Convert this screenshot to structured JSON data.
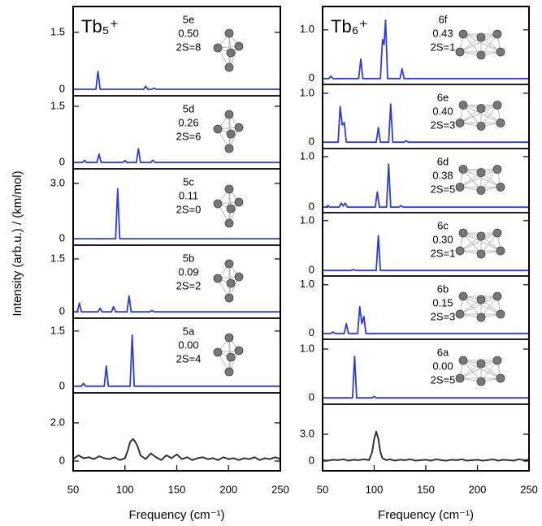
{
  "chart_data": [
    {
      "type": "line",
      "title": "Tb₅⁺",
      "ylabel": "Intensity (arb.u.) / (km/mol)",
      "xlabel": "Frequency (cm⁻¹)",
      "xlim": [
        50,
        250
      ],
      "xticks": [
        50,
        100,
        150,
        200,
        250
      ],
      "panels": [
        {
          "label": "5e",
          "energy": "0.50",
          "spin": "2S=8",
          "ylim": [
            -0.17,
            2.18
          ],
          "yticks": [
            0,
            1.5
          ],
          "series": [
            {
              "color": "#2b3be0",
              "x": [
                50,
                72,
                74,
                76,
                118,
                120,
                122,
                126,
                128,
                130,
                250
              ],
              "values": [
                0,
                0,
                0.47,
                0,
                0,
                0.08,
                0,
                0,
                0.03,
                0,
                0
              ]
            }
          ]
        },
        {
          "label": "5d",
          "energy": "0.26",
          "spin": "2S=6",
          "ylim": [
            -0.17,
            1.78
          ],
          "yticks": [
            0,
            1.5
          ],
          "series": [
            {
              "color": "#2b3be0",
              "x": [
                50,
                59,
                61,
                63,
                73,
                75,
                77,
                98,
                100,
                102,
                111,
                113,
                115,
                125,
                127,
                129,
                250
              ],
              "values": [
                0,
                0,
                0.06,
                0,
                0,
                0.22,
                0,
                0,
                0.05,
                0,
                0,
                0.37,
                0,
                0,
                0.06,
                0,
                0
              ]
            }
          ]
        },
        {
          "label": "5c",
          "energy": "0.11",
          "spin": "2S=0",
          "ylim": [
            -0.35,
            3.79
          ],
          "yticks": [
            0,
            {
              "value": 3,
              "label": "3.0"
            }
          ],
          "series": [
            {
              "color": "#2b3be0",
              "x": [
                50,
                91,
                93,
                95,
                250
              ],
              "values": [
                0,
                0,
                2.7,
                0,
                0
              ]
            }
          ]
        },
        {
          "label": "5b",
          "energy": "0.09",
          "spin": "2S=2",
          "ylim": [
            -0.18,
            1.89
          ],
          "yticks": [
            0,
            1.5
          ],
          "series": [
            {
              "color": "#2b3be0",
              "x": [
                50,
                54,
                56,
                58,
                74,
                76,
                78,
                87,
                89,
                91,
                102,
                104,
                106,
                124,
                126,
                128,
                250
              ],
              "values": [
                0,
                0,
                0.25,
                0,
                0,
                0.1,
                0,
                0,
                0.15,
                0,
                0,
                0.45,
                0,
                0,
                0.04,
                0,
                0
              ]
            }
          ]
        },
        {
          "label": "5a",
          "energy": "0.00",
          "spin": "2S=4",
          "ylim": [
            -0.18,
            1.85
          ],
          "yticks": [
            0,
            1.5
          ],
          "series": [
            {
              "color": "#2b3be0",
              "x": [
                50,
                58,
                60,
                62,
                80,
                82,
                84,
                105,
                107,
                109,
                250
              ],
              "values": [
                0,
                0,
                0.08,
                0,
                0,
                0.55,
                0,
                0,
                1.39,
                0,
                0
              ]
            }
          ]
        },
        {
          "ylim": [
            -0.51,
            3.57
          ],
          "yticks": [
            0,
            {
              "value": 2,
              "label": "2.0"
            }
          ],
          "series": [
            {
              "color": "#333333",
              "x": [
                50,
                55,
                60,
                65,
                70,
                75,
                80,
                85,
                90,
                95,
                100,
                103,
                105,
                108,
                110,
                112,
                115,
                120,
                125,
                130,
                135,
                140,
                145,
                150,
                155,
                160,
                165,
                170,
                175,
                180,
                185,
                190,
                195,
                200,
                205,
                210,
                215,
                220,
                225,
                230,
                235,
                240,
                245,
                250
              ],
              "values": [
                0.1,
                0.3,
                0.15,
                0.2,
                0.1,
                0.25,
                0.15,
                0.1,
                0.2,
                0.05,
                0.15,
                0.6,
                1.0,
                1.15,
                1.0,
                0.8,
                0.3,
                0.1,
                0.4,
                0.2,
                0.05,
                0.3,
                0.15,
                0.35,
                0.1,
                0.2,
                0.05,
                0.15,
                0.2,
                0.1,
                0.15,
                0.05,
                0.2,
                0.1,
                0.15,
                0.05,
                0.15,
                0.1,
                0.2,
                0.05,
                0.15,
                0.1,
                0.2,
                0.1
              ]
            }
          ]
        }
      ]
    },
    {
      "type": "line",
      "title": "Tb₆⁺",
      "xlabel": "Frequency (cm⁻¹)",
      "xlim": [
        50,
        250
      ],
      "xticks": [
        50,
        100,
        150,
        200,
        250
      ],
      "panels": [
        {
          "label": "6f",
          "energy": "0.43",
          "spin": "2S=1",
          "ylim": [
            -0.12,
            1.48
          ],
          "yticks": [
            0,
            {
              "value": 1,
              "label": "1.0"
            }
          ],
          "series": [
            {
              "color": "#2b3be0",
              "x": [
                50,
                56,
                58,
                60,
                85,
                87,
                89,
                106,
                108,
                109.5,
                111,
                113,
                125,
                127,
                129,
                250
              ],
              "values": [
                0,
                0,
                0.05,
                0,
                0,
                0.4,
                0,
                0,
                0.8,
                0.7,
                1.2,
                0,
                0,
                0.2,
                0,
                0
              ]
            }
          ]
        },
        {
          "label": "6e",
          "energy": "0.40",
          "spin": "2S=3",
          "ylim": [
            -0.13,
            1.18
          ],
          "yticks": [
            0,
            {
              "value": 1,
              "label": "1.0"
            }
          ],
          "series": [
            {
              "color": "#2b3be0",
              "x": [
                50,
                65,
                67,
                69,
                71,
                73,
                102,
                104,
                106,
                114,
                116,
                118,
                129,
                131,
                133,
                250
              ],
              "values": [
                0,
                0,
                0.73,
                0.35,
                0.4,
                0,
                0,
                0.3,
                0,
                0,
                0.78,
                0,
                0,
                0.03,
                0,
                0
              ]
            }
          ]
        },
        {
          "label": "6d",
          "energy": "0.38",
          "spin": "2S=5",
          "ylim": [
            -0.11,
            1.16
          ],
          "yticks": [
            0,
            {
              "value": 1,
              "label": "1.0"
            }
          ],
          "series": [
            {
              "color": "#2b3be0",
              "x": [
                50,
                53,
                55,
                57,
                66,
                68,
                70,
                72,
                74,
                101,
                103,
                105,
                112,
                114,
                116,
                124,
                126,
                128,
                250
              ],
              "values": [
                0,
                0,
                0.03,
                0,
                0,
                0.08,
                0.02,
                0.08,
                0,
                0,
                0.3,
                0,
                0,
                0.85,
                0,
                0,
                0.03,
                0,
                0
              ]
            }
          ]
        },
        {
          "label": "6c",
          "energy": "0.30",
          "spin": "2S=1",
          "ylim": [
            -0.11,
            1.16
          ],
          "yticks": [
            0,
            {
              "value": 1,
              "label": "1.0"
            }
          ],
          "series": [
            {
              "color": "#2b3be0",
              "x": [
                50,
                78,
                80,
                82,
                102,
                104,
                106,
                250
              ],
              "values": [
                0,
                0,
                0.02,
                0,
                0,
                0.7,
                0,
                0
              ]
            }
          ]
        },
        {
          "label": "6b",
          "energy": "0.15",
          "spin": "2S=3",
          "ylim": [
            -0.12,
            1.18
          ],
          "yticks": [
            0,
            {
              "value": 1,
              "label": "1.0"
            }
          ],
          "series": [
            {
              "color": "#2b3be0",
              "x": [
                50,
                58,
                60,
                62,
                71,
                73,
                75,
                84,
                86,
                88,
                90,
                92,
                250
              ],
              "values": [
                0,
                0,
                0.03,
                0,
                0,
                0.2,
                0,
                0,
                0.55,
                0.2,
                0.35,
                0,
                0
              ]
            }
          ]
        },
        {
          "label": "6a",
          "energy": "0.00",
          "spin": "2S=5",
          "ylim": [
            -0.13,
            1.2
          ],
          "yticks": [
            0,
            {
              "value": 1,
              "label": "1.0"
            }
          ],
          "series": [
            {
              "color": "#2b3be0",
              "x": [
                50,
                79,
                81,
                83,
                98,
                100,
                102,
                250
              ],
              "values": [
                0,
                0,
                0.85,
                0,
                0,
                0.03,
                0,
                0
              ]
            }
          ]
        },
        {
          "ylim": [
            -1.09,
            6.36
          ],
          "yticks": [
            0,
            {
              "value": 3,
              "label": "3.0"
            }
          ],
          "series": [
            {
              "color": "#333333",
              "x": [
                50,
                55,
                60,
                65,
                70,
                75,
                80,
                85,
                90,
                95,
                98,
                100,
                102,
                104,
                106,
                108,
                112,
                115,
                120,
                125,
                130,
                135,
                140,
                145,
                150,
                155,
                160,
                165,
                170,
                175,
                180,
                185,
                190,
                195,
                200,
                205,
                210,
                215,
                220,
                225,
                230,
                235,
                240,
                245,
                250
              ],
              "values": [
                0.1,
                0.05,
                0.15,
                0.1,
                0.2,
                0.05,
                0.15,
                0.1,
                0.2,
                0.1,
                1.0,
                2.5,
                3.3,
                2.5,
                1.0,
                0.3,
                0.1,
                0.2,
                0.05,
                0.15,
                0.1,
                0.2,
                0.05,
                0.1,
                0.15,
                0.05,
                0.2,
                0.1,
                0.05,
                0.15,
                0.1,
                0.2,
                0.05,
                0.1,
                0.15,
                0.05,
                0.1,
                0.2,
                0.05,
                0.15,
                0.1,
                0.05,
                0.2,
                0.1,
                0.15
              ]
            }
          ]
        }
      ]
    }
  ]
}
